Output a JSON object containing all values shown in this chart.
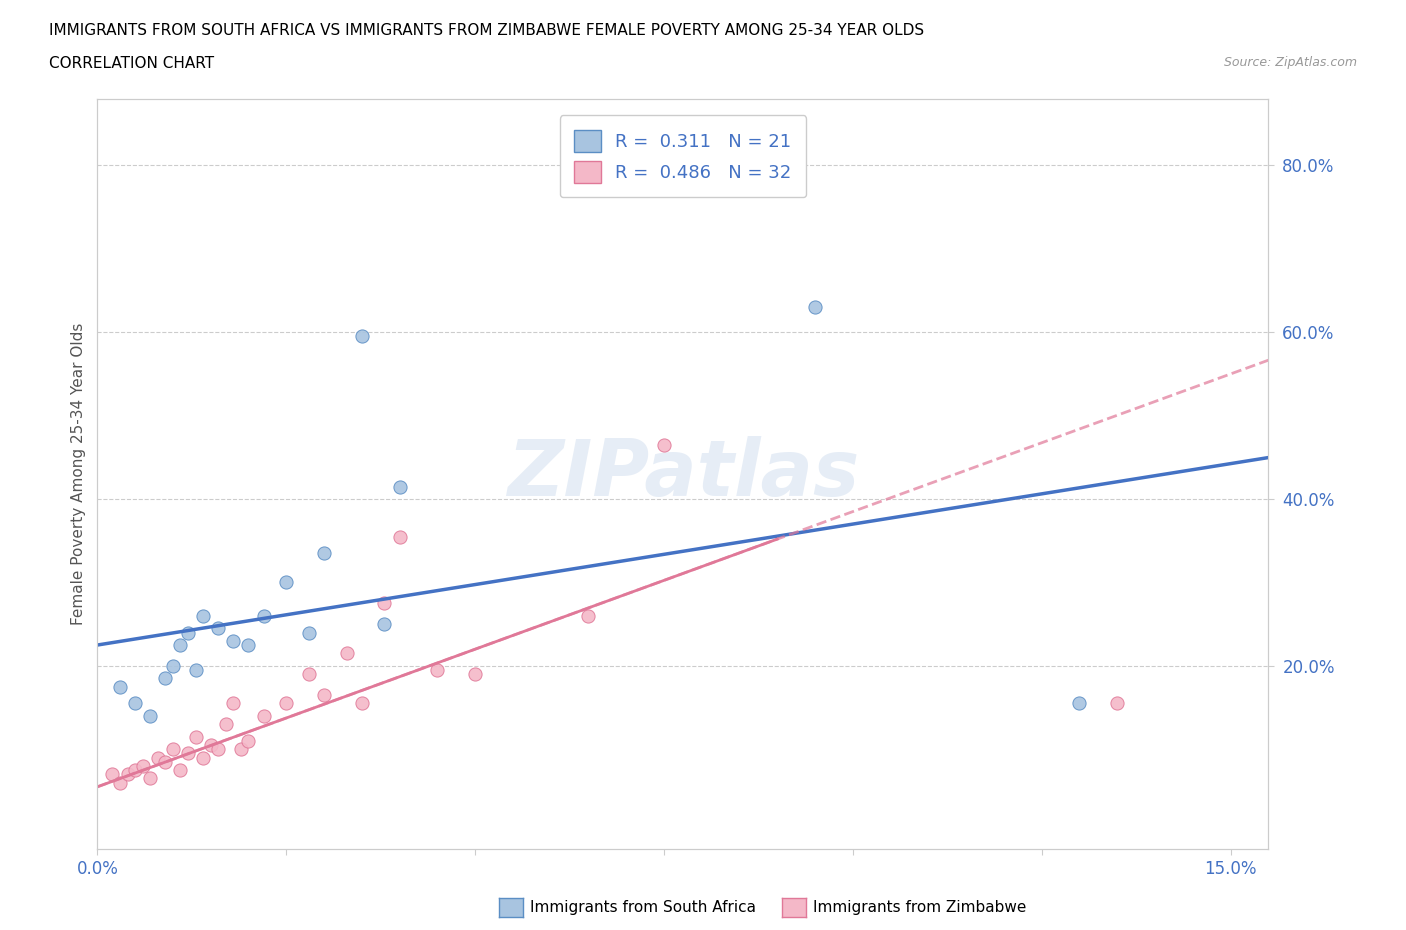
{
  "title": "IMMIGRANTS FROM SOUTH AFRICA VS IMMIGRANTS FROM ZIMBABWE FEMALE POVERTY AMONG 25-34 YEAR OLDS",
  "subtitle": "CORRELATION CHART",
  "source": "Source: ZipAtlas.com",
  "ylabel": "Female Poverty Among 25-34 Year Olds",
  "r1": 0.311,
  "n1": 21,
  "r2": 0.486,
  "n2": 32,
  "xlim": [
    0.0,
    0.155
  ],
  "ylim": [
    -0.02,
    0.88
  ],
  "yticks_right": [
    0.2,
    0.4,
    0.6,
    0.8
  ],
  "ytick_labels_right": [
    "20.0%",
    "40.0%",
    "60.0%",
    "80.0%"
  ],
  "xticks": [
    0.0,
    0.025,
    0.05,
    0.075,
    0.1,
    0.125,
    0.15
  ],
  "xtick_labels": [
    "0.0%",
    "",
    "",
    "",
    "",
    "",
    "15.0%"
  ],
  "color_sa": "#a8c4e0",
  "color_sa_edge": "#5b8ec4",
  "color_zim": "#f4b8c8",
  "color_zim_edge": "#e07898",
  "color_sa_line": "#4472c4",
  "color_zim_line": "#e07898",
  "sa_line_intercept": 0.225,
  "sa_line_slope": 1.45,
  "zim_line_intercept": 0.055,
  "zim_line_slope": 3.3,
  "scatter_sa_x": [
    0.003,
    0.005,
    0.007,
    0.009,
    0.01,
    0.011,
    0.012,
    0.013,
    0.014,
    0.016,
    0.018,
    0.02,
    0.022,
    0.025,
    0.028,
    0.03,
    0.035,
    0.038,
    0.04,
    0.095,
    0.13
  ],
  "scatter_sa_y": [
    0.175,
    0.155,
    0.14,
    0.185,
    0.2,
    0.225,
    0.24,
    0.195,
    0.26,
    0.245,
    0.23,
    0.225,
    0.26,
    0.3,
    0.24,
    0.335,
    0.595,
    0.25,
    0.415,
    0.63,
    0.155
  ],
  "scatter_zim_x": [
    0.002,
    0.003,
    0.004,
    0.005,
    0.006,
    0.007,
    0.008,
    0.009,
    0.01,
    0.011,
    0.012,
    0.013,
    0.014,
    0.015,
    0.016,
    0.017,
    0.018,
    0.019,
    0.02,
    0.022,
    0.025,
    0.028,
    0.03,
    0.033,
    0.035,
    0.038,
    0.04,
    0.045,
    0.05,
    0.065,
    0.075,
    0.135
  ],
  "scatter_zim_y": [
    0.07,
    0.06,
    0.07,
    0.075,
    0.08,
    0.065,
    0.09,
    0.085,
    0.1,
    0.075,
    0.095,
    0.115,
    0.09,
    0.105,
    0.1,
    0.13,
    0.155,
    0.1,
    0.11,
    0.14,
    0.155,
    0.19,
    0.165,
    0.215,
    0.155,
    0.275,
    0.355,
    0.195,
    0.19,
    0.26,
    0.465,
    0.155
  ]
}
